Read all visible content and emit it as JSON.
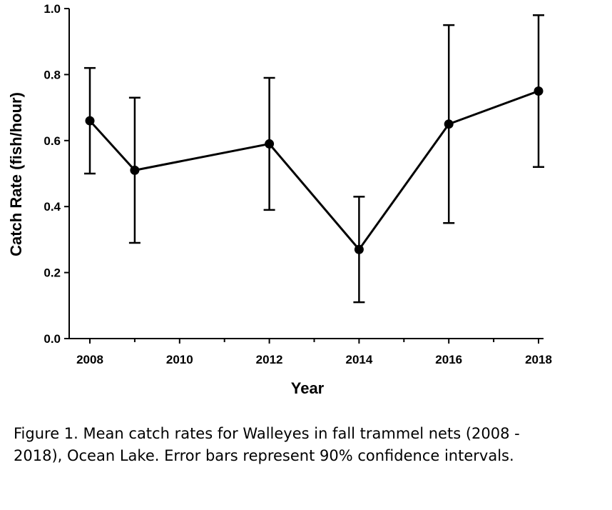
{
  "chart_data": {
    "type": "line",
    "xlabel": "Year",
    "ylabel": "Catch Rate (fish/hour)",
    "xlim": [
      2008,
      2018
    ],
    "ylim": [
      0.0,
      1.0
    ],
    "x_ticks": [
      "2008",
      "2010",
      "2012",
      "2014",
      "2016",
      "2018"
    ],
    "y_ticks": [
      "0.0",
      "0.2",
      "0.4",
      "0.6",
      "0.8",
      "1.0"
    ],
    "grid": false,
    "series": [
      {
        "x": [
          2008,
          2009,
          2012,
          2014,
          2016,
          2018
        ],
        "y": [
          0.66,
          0.51,
          0.59,
          0.27,
          0.65,
          0.75
        ],
        "error_low": [
          0.5,
          0.29,
          0.39,
          0.11,
          0.35,
          0.52
        ],
        "error_high": [
          0.82,
          0.73,
          0.79,
          0.43,
          0.95,
          0.98
        ],
        "color": "#000000"
      }
    ]
  },
  "caption": "Figure 1.  Mean catch rates for Walleyes in fall trammel nets (2008 -\n2018), Ocean Lake.  Error bars represent 90% confidence intervals."
}
